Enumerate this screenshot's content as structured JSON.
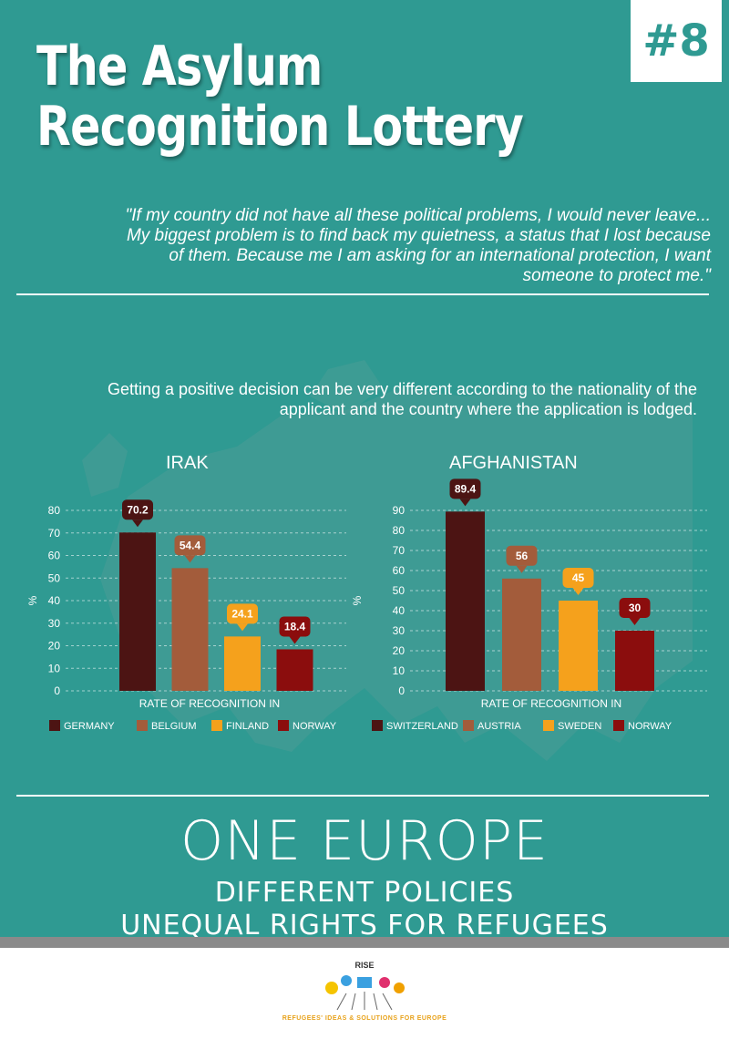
{
  "header": {
    "title_line1": "The Asylum",
    "title_line2": "Recognition Lottery",
    "badge": "#8"
  },
  "quote": "\"If my country did not have all these  political  problems,  I  would  never leave... My  biggest  problem  is  to  find back  my  quietness,  a  status that I lost because  of  them.  Because  me  I  am asking  for  an international  protection, I want  someone  to  protect  me.\"",
  "intro": "Getting a positive decision can be very different according to the nationality of the applicant and the country where the application is lodged.",
  "chart_data": [
    {
      "type": "bar",
      "title": "IRAK",
      "xlabel": "RATE OF RECOGNITION IN",
      "ylabel": "%",
      "ylim": [
        0,
        80
      ],
      "yticks": [
        0,
        10,
        20,
        30,
        40,
        50,
        60,
        70,
        80
      ],
      "grid": true,
      "legend": "bottom",
      "categories": [
        "GERMANY",
        "BELGIUM",
        "FINLAND",
        "NORWAY"
      ],
      "values": [
        70.2,
        54.4,
        24.1,
        18.4
      ],
      "labels": [
        "70.2",
        "54.4",
        "24.1",
        "18.4"
      ],
      "colors": [
        "#4c1413",
        "#a35c3b",
        "#f5a11c",
        "#8b0d0d"
      ]
    },
    {
      "type": "bar",
      "title": "AFGHANISTAN",
      "xlabel": "RATE OF RECOGNITION IN",
      "ylabel": "%",
      "ylim": [
        0,
        90
      ],
      "yticks": [
        0,
        10,
        20,
        30,
        40,
        50,
        60,
        70,
        80,
        90
      ],
      "grid": true,
      "legend": "bottom",
      "categories": [
        "SWITZERLAND",
        "AUSTRIA",
        "SWEDEN",
        "NORWAY"
      ],
      "values": [
        89.4,
        56,
        45,
        30
      ],
      "labels": [
        "89.4",
        "56",
        "45",
        "30"
      ],
      "colors": [
        "#4c1413",
        "#a35c3b",
        "#f5a11c",
        "#8b0d0d"
      ]
    }
  ],
  "slogan": {
    "line1": "ONE EUROPE",
    "line2": "DIFFERENT POLICIES",
    "line3": "UNEQUAL RIGHTS FOR REFUGEES"
  },
  "footer": {
    "name": "RISE",
    "tagline": "REFUGEES' IDEAS & SOLUTIONS FOR EUROPE"
  }
}
